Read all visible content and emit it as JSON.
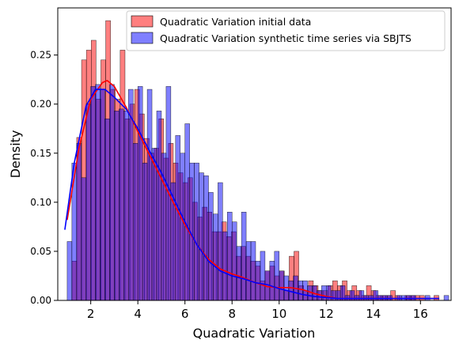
{
  "chart_data": {
    "type": "histogram",
    "xlabel": "Quadratic Variation",
    "ylabel": "Density",
    "xlim": [
      0.6,
      17.3
    ],
    "ylim": [
      0,
      0.298
    ],
    "x_ticks": [
      2,
      4,
      6,
      8,
      10,
      12,
      14,
      16
    ],
    "x_tick_labels": [
      "2",
      "4",
      "6",
      "8",
      "10",
      "12",
      "14",
      "16"
    ],
    "y_ticks": [
      0.0,
      0.05,
      0.1,
      0.15,
      0.2,
      0.25
    ],
    "y_tick_labels": [
      "0.00",
      "0.05",
      "0.10",
      "0.15",
      "0.20",
      "0.25"
    ],
    "grid": false,
    "legend_position": "top-right",
    "series": [
      {
        "name": "Quadratic Variation initial data",
        "color": "#ff0000",
        "bin_start": 1.2,
        "bin_width": 0.205,
        "bin_values": [
          0.04,
          0.166,
          0.245,
          0.255,
          0.265,
          0.205,
          0.245,
          0.285,
          0.215,
          0.205,
          0.255,
          0.185,
          0.2,
          0.215,
          0.19,
          0.165,
          0.15,
          0.155,
          0.185,
          0.145,
          0.16,
          0.14,
          0.13,
          0.12,
          0.125,
          0.1,
          0.085,
          0.095,
          0.09,
          0.07,
          0.07,
          0.08,
          0.065,
          0.07,
          0.045,
          0.055,
          0.045,
          0.04,
          0.035,
          0.02,
          0.03,
          0.035,
          0.025,
          0.03,
          0.01,
          0.045,
          0.05,
          0.015,
          0.01,
          0.02,
          0.015,
          0.01,
          0.01,
          0.015,
          0.02,
          0.015,
          0.02,
          0.01,
          0.015,
          0.01,
          0.005,
          0.015,
          0.01,
          0.005,
          0.005,
          0.005,
          0.01,
          0.005,
          0.0,
          0.005,
          0.005,
          0.005,
          0.005,
          0.0,
          0.0,
          0.005,
          0.0,
          0.0,
          0.0,
          0.0,
          0.0,
          0.005,
          0.0,
          0.0,
          0.0,
          0.0,
          0.0,
          0.0,
          0.005,
          0.0,
          0.0,
          0.0,
          0.005,
          0.0,
          0.005,
          0.0,
          0.0,
          0.0,
          0.0,
          0.0,
          0.0,
          0.0,
          0.0,
          0.0,
          0.0,
          0.005,
          0.005,
          0.0,
          0.0,
          0.0,
          0.0,
          0.0,
          0.0,
          0.0,
          0.0,
          0.0,
          0.0,
          0.0
        ],
        "kde_x": [
          1.0,
          1.5,
          2.0,
          2.5,
          2.7,
          3.0,
          3.5,
          4.0,
          4.5,
          5.0,
          5.5,
          6.0,
          6.5,
          7.0,
          7.5,
          8.0,
          8.5,
          9.0,
          9.5,
          10.0,
          10.5,
          11.0,
          11.5,
          12.0,
          12.5,
          13.0,
          14.0,
          15.0,
          16.0,
          16.8
        ],
        "kde_y": [
          0.082,
          0.155,
          0.205,
          0.222,
          0.224,
          0.218,
          0.197,
          0.172,
          0.148,
          0.124,
          0.1,
          0.077,
          0.057,
          0.042,
          0.032,
          0.027,
          0.023,
          0.018,
          0.014,
          0.013,
          0.013,
          0.011,
          0.007,
          0.004,
          0.002,
          0.002,
          0.002,
          0.002,
          0.002,
          0.002
        ]
      },
      {
        "name": "Quadratic Variation synthetic time series via SBJTS",
        "color": "#0000ff",
        "bin_start": 1.0,
        "bin_width": 0.2,
        "bin_values": [
          0.06,
          0.14,
          0.16,
          0.125,
          0.2,
          0.218,
          0.22,
          0.215,
          0.185,
          0.22,
          0.193,
          0.195,
          0.193,
          0.215,
          0.16,
          0.218,
          0.14,
          0.215,
          0.155,
          0.193,
          0.15,
          0.218,
          0.12,
          0.168,
          0.15,
          0.18,
          0.14,
          0.14,
          0.13,
          0.127,
          0.11,
          0.088,
          0.12,
          0.07,
          0.09,
          0.08,
          0.055,
          0.09,
          0.06,
          0.06,
          0.04,
          0.05,
          0.03,
          0.04,
          0.05,
          0.03,
          0.025,
          0.02,
          0.025,
          0.02,
          0.02,
          0.015,
          0.015,
          0.01,
          0.015,
          0.015,
          0.01,
          0.01,
          0.015,
          0.005,
          0.01,
          0.005,
          0.01,
          0.005,
          0.005,
          0.01,
          0.005,
          0.005,
          0.005,
          0.0,
          0.005,
          0.005,
          0.005,
          0.005,
          0.0,
          0.0,
          0.005,
          0.0,
          0.0,
          0.0,
          0.005,
          0.0,
          0.0,
          0.0,
          0.0,
          0.0,
          0.0,
          0.0,
          0.0,
          0.0,
          0.0,
          0.0,
          0.0,
          0.0,
          0.0,
          0.0,
          0.0,
          0.0,
          0.0,
          0.0,
          0.0,
          0.0,
          0.0,
          0.0,
          0.0,
          0.0,
          0.0,
          0.0,
          0.0,
          0.0,
          0.0,
          0.0,
          0.0,
          0.0,
          0.0,
          0.0,
          0.0,
          0.0,
          0.0,
          0.0,
          0.0,
          0.0,
          0.0,
          0.0,
          0.0,
          0.0,
          0.0,
          0.0,
          0.0,
          0.0,
          0.0,
          0.0,
          0.0,
          0.0,
          0.0,
          0.0,
          0.0,
          0.0,
          0.0,
          0.0,
          0.0,
          0.0,
          0.0,
          0.0,
          0.0,
          0.0,
          0.0,
          0.0,
          0.0,
          0.0,
          0.0,
          0.0,
          0.0,
          0.0,
          0.0,
          0.0,
          0.0,
          0.0,
          0.0,
          0.0,
          0.008
        ],
        "kde_x": [
          0.9,
          1.3,
          1.8,
          2.2,
          2.6,
          3.0,
          3.5,
          4.0,
          4.5,
          5.0,
          5.5,
          6.0,
          6.5,
          7.0,
          7.5,
          8.0,
          8.5,
          9.0,
          9.5,
          10.0,
          10.5,
          11.0,
          11.5,
          12.0,
          12.5,
          13.0,
          14.0,
          15.0,
          16.0,
          16.8
        ],
        "kde_y": [
          0.072,
          0.14,
          0.198,
          0.215,
          0.215,
          0.207,
          0.195,
          0.175,
          0.152,
          0.13,
          0.105,
          0.08,
          0.057,
          0.04,
          0.03,
          0.025,
          0.022,
          0.018,
          0.016,
          0.012,
          0.009,
          0.006,
          0.004,
          0.003,
          0.002,
          0.002,
          0.002,
          0.002,
          0.002,
          0.002
        ]
      }
    ]
  }
}
